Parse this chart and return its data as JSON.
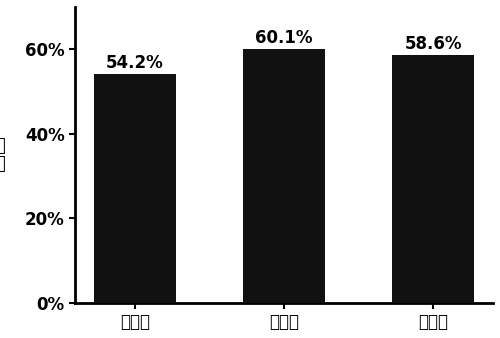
{
  "categories": [
    "第一次",
    "第二次",
    "第三次"
  ],
  "values": [
    0.542,
    0.601,
    0.586
  ],
  "labels": [
    "54.2%",
    "60.1%",
    "58.6%"
  ],
  "bar_color": "#111111",
  "ylabel": "产量",
  "ylim": [
    0,
    0.7
  ],
  "yticks": [
    0.0,
    0.2,
    0.4,
    0.6
  ],
  "ytick_labels": [
    "0%",
    "20%",
    "40%",
    "60%"
  ],
  "background_color": "#ffffff",
  "bar_width": 0.55,
  "label_fontsize": 12,
  "tick_fontsize": 12,
  "ylabel_fontsize": 13
}
